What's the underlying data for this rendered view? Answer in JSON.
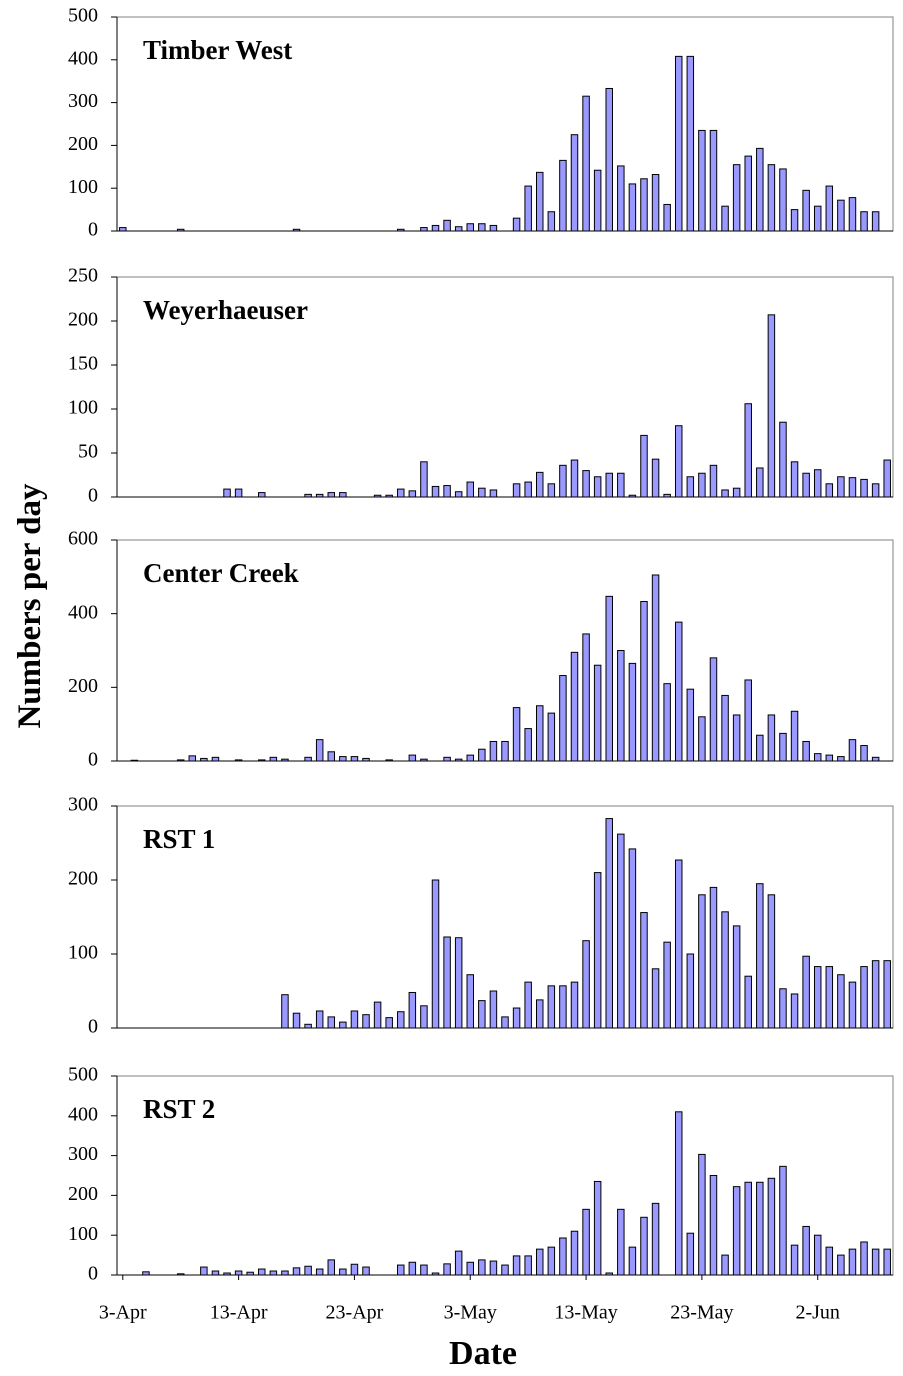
{
  "chart_data": [
    {
      "type": "bar",
      "title": "Timber West",
      "color": "#9999ff",
      "ylim": [
        0,
        500
      ],
      "yticks": [
        0,
        100,
        200,
        300,
        400,
        500
      ],
      "values": [
        8,
        0,
        0,
        0,
        0,
        4,
        0,
        0,
        0,
        0,
        0,
        0,
        0,
        0,
        0,
        4,
        0,
        0,
        0,
        0,
        0,
        0,
        0,
        0,
        4,
        0,
        8,
        13,
        25,
        10,
        17,
        17,
        13,
        0,
        30,
        105,
        137,
        45,
        165,
        225,
        315,
        142,
        333,
        152,
        110,
        122,
        132,
        62,
        408,
        408,
        235,
        235,
        58,
        155,
        175,
        193,
        155,
        145,
        50,
        95,
        58,
        105,
        72,
        78,
        45,
        45,
        0
      ]
    },
    {
      "type": "bar",
      "title": "Weyerhaeuser",
      "color": "#9999ff",
      "ylim": [
        0,
        250
      ],
      "yticks": [
        0,
        50,
        100,
        150,
        200,
        250
      ],
      "values": [
        0,
        0,
        0,
        0,
        0,
        0,
        0,
        0,
        0,
        9,
        9,
        0,
        5,
        0,
        0,
        0,
        3,
        3,
        5,
        5,
        0,
        0,
        2,
        2,
        9,
        7,
        40,
        12,
        13,
        6,
        17,
        10,
        8,
        0,
        15,
        17,
        28,
        15,
        36,
        42,
        30,
        23,
        27,
        27,
        2,
        70,
        43,
        3,
        81,
        23,
        27,
        36,
        8,
        10,
        106,
        33,
        207,
        85,
        40,
        27,
        31,
        15,
        23,
        22,
        20,
        15,
        42
      ]
    },
    {
      "type": "bar",
      "title": "Center Creek",
      "color": "#9999ff",
      "ylim": [
        0,
        600
      ],
      "yticks": [
        0,
        200,
        400,
        600
      ],
      "values": [
        0,
        2,
        0,
        0,
        0,
        3,
        14,
        7,
        10,
        0,
        3,
        0,
        3,
        10,
        5,
        0,
        10,
        58,
        25,
        12,
        12,
        7,
        0,
        3,
        0,
        16,
        5,
        0,
        10,
        5,
        16,
        32,
        53,
        53,
        145,
        88,
        150,
        130,
        232,
        295,
        345,
        260,
        447,
        300,
        265,
        433,
        505,
        210,
        377,
        195,
        120,
        280,
        178,
        125,
        220,
        70,
        125,
        75,
        135,
        53,
        20,
        16,
        12,
        58,
        42,
        10,
        0
      ]
    },
    {
      "type": "bar",
      "title": "RST 1",
      "color": "#9999ff",
      "ylim": [
        0,
        300
      ],
      "yticks": [
        0,
        100,
        200,
        300
      ],
      "values": [
        0,
        0,
        0,
        0,
        0,
        0,
        0,
        0,
        0,
        0,
        0,
        0,
        0,
        0,
        45,
        20,
        5,
        23,
        15,
        8,
        23,
        18,
        35,
        14,
        22,
        48,
        30,
        200,
        123,
        122,
        72,
        37,
        50,
        15,
        27,
        62,
        38,
        57,
        57,
        62,
        118,
        210,
        283,
        262,
        242,
        156,
        80,
        116,
        227,
        100,
        180,
        190,
        157,
        138,
        70,
        195,
        180,
        53,
        46,
        97,
        83,
        83,
        72,
        62,
        83,
        91,
        91
      ]
    },
    {
      "type": "bar",
      "title": "RST 2",
      "color": "#9999ff",
      "ylim": [
        0,
        500
      ],
      "yticks": [
        0,
        100,
        200,
        300,
        400,
        500
      ],
      "values": [
        0,
        0,
        8,
        0,
        0,
        3,
        0,
        20,
        10,
        5,
        10,
        7,
        15,
        10,
        10,
        18,
        22,
        15,
        38,
        15,
        27,
        20,
        0,
        0,
        25,
        32,
        25,
        5,
        28,
        60,
        32,
        38,
        35,
        25,
        48,
        48,
        65,
        70,
        93,
        110,
        165,
        235,
        5,
        165,
        70,
        145,
        180,
        0,
        410,
        105,
        303,
        250,
        50,
        222,
        233,
        233,
        243,
        273,
        75,
        122,
        100,
        70,
        50,
        65,
        83,
        65,
        65
      ],
      "categories": [
        "3-Apr",
        null,
        null,
        null,
        null,
        null,
        null,
        null,
        null,
        null,
        "13-Apr",
        null,
        null,
        null,
        null,
        null,
        null,
        null,
        null,
        null,
        "23-Apr",
        null,
        null,
        null,
        null,
        null,
        null,
        null,
        null,
        null,
        "3-May",
        null,
        null,
        null,
        null,
        null,
        null,
        null,
        null,
        null,
        "13-May",
        null,
        null,
        null,
        null,
        null,
        null,
        null,
        null,
        null,
        "23-May",
        null,
        null,
        null,
        null,
        null,
        null,
        null,
        null,
        null,
        "2-Jun",
        null,
        null,
        null,
        null,
        null,
        null
      ],
      "x_label": "Date",
      "y_label": "Numbers per day"
    }
  ]
}
